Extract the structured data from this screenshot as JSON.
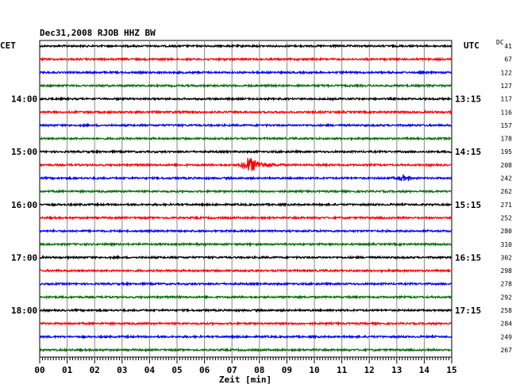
{
  "chart_data": {
    "type": "line",
    "title": "Dec31,2008  RJOB HHZ BW",
    "xlabel": "Zeit [min]",
    "left_label": "CET",
    "right_label": "UTC",
    "dc_label": "DC",
    "xlim": [
      0,
      15
    ],
    "x_ticks": [
      "00",
      "01",
      "02",
      "03",
      "04",
      "05",
      "06",
      "07",
      "08",
      "09",
      "10",
      "11",
      "12",
      "13",
      "14",
      "15"
    ],
    "left_hours": [
      "14:00",
      "15:00",
      "16:00",
      "17:00",
      "18:00"
    ],
    "right_hours": [
      "13:15",
      "14:15",
      "15:15",
      "16:15",
      "17:15"
    ],
    "trace_colors": [
      "#000000",
      "#ff0000",
      "#0000ff",
      "#007000"
    ],
    "dc_offsets": [
      "41",
      "67",
      "122",
      "127",
      "117",
      "116",
      "157",
      "178",
      "195",
      "208",
      "242",
      "262",
      "271",
      "252",
      "280",
      "310",
      "302",
      "298",
      "278",
      "292",
      "258",
      "284",
      "249",
      "267"
    ],
    "events": [
      {
        "trace": 9,
        "start_min": 7.2,
        "end_min": 8.9,
        "peak_min": 7.6
      },
      {
        "trace": 10,
        "start_min": 12.5,
        "end_min": 13.5,
        "peak_min": 13.2
      }
    ]
  }
}
